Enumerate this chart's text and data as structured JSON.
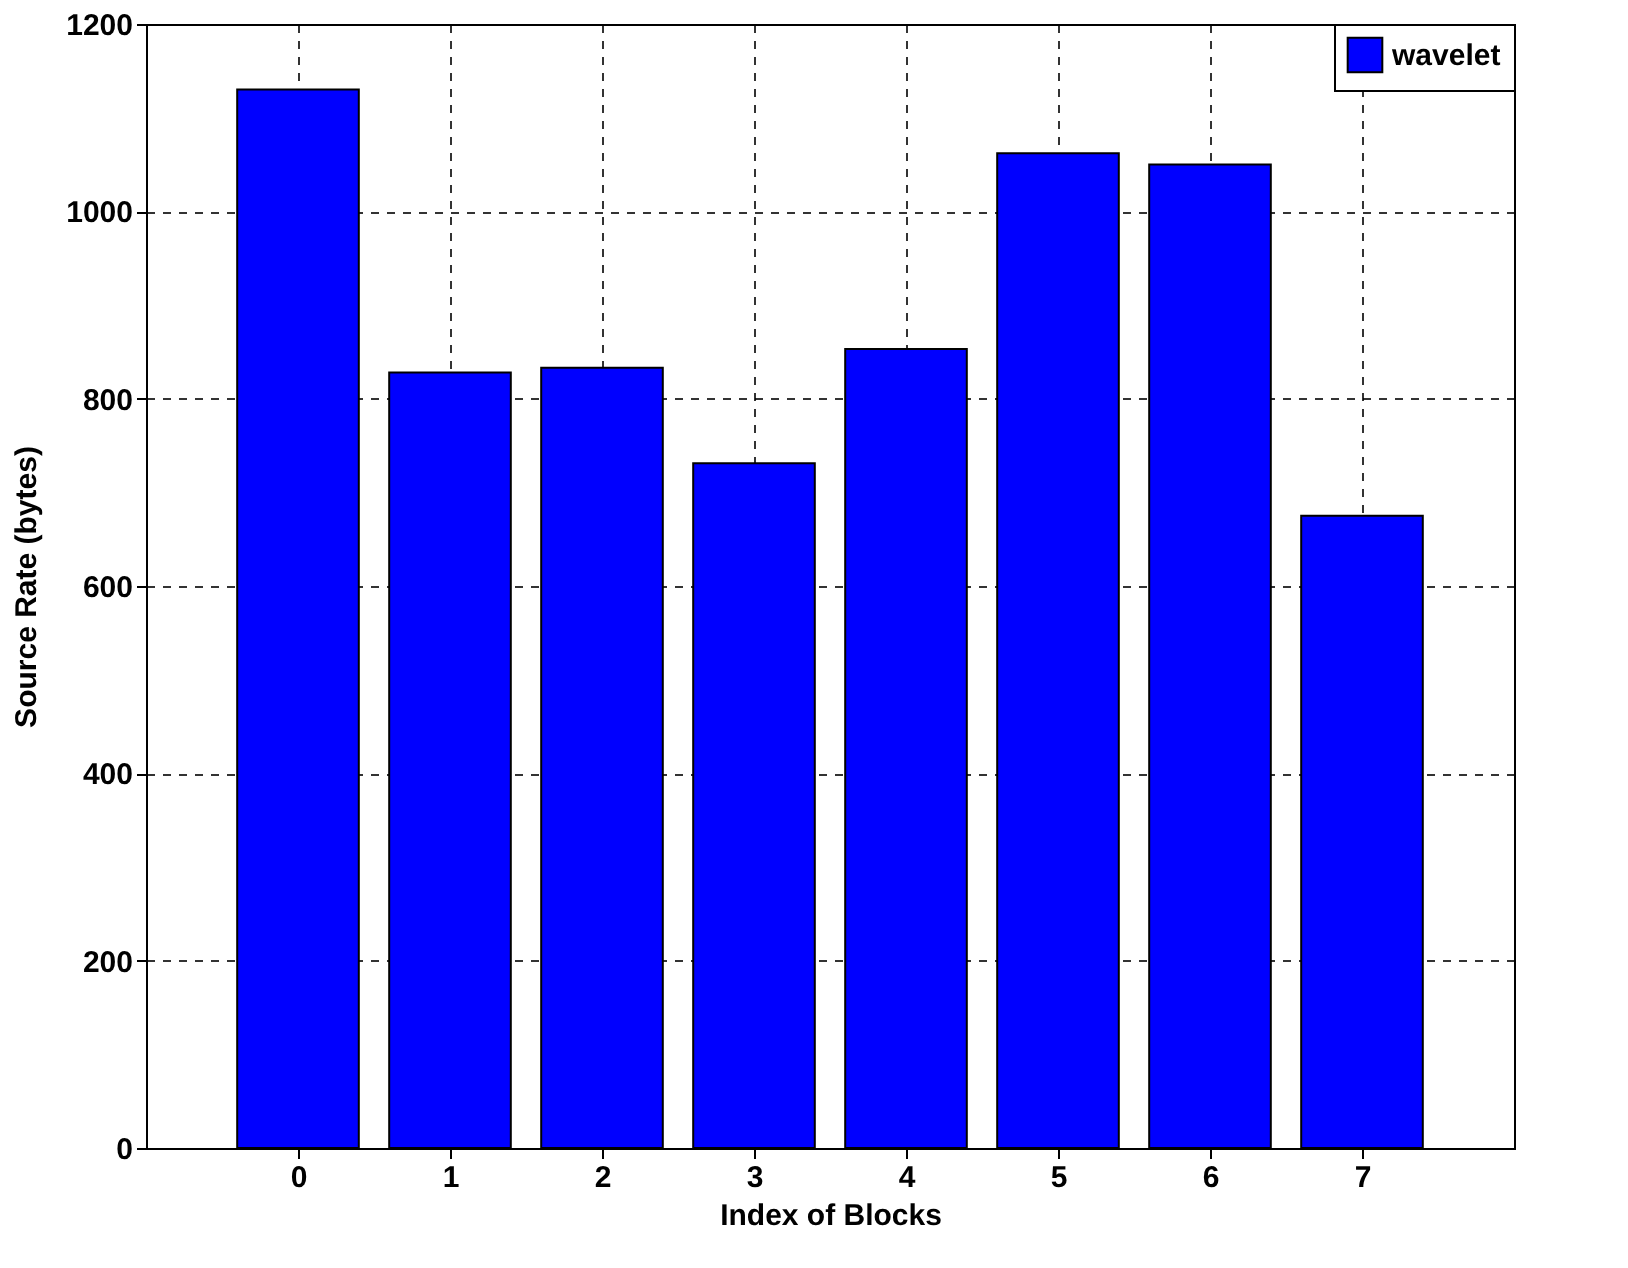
{
  "chart_data": {
    "type": "bar",
    "xlabel": "Index of Blocks",
    "ylabel": "Source Rate (bytes)",
    "x": [
      0,
      1,
      2,
      3,
      4,
      5,
      6,
      7
    ],
    "series": [
      {
        "name": "wavelet",
        "color": "#0000ff",
        "values": [
          1130,
          828,
          833,
          731,
          853,
          1062,
          1050,
          675
        ]
      }
    ],
    "xlim": [
      -1,
      8
    ],
    "xticks": [
      0,
      1,
      2,
      3,
      4,
      5,
      6,
      7
    ],
    "ylim": [
      0,
      1200
    ],
    "yticks": [
      0,
      200,
      400,
      600,
      800,
      1000,
      1200
    ],
    "grid": true,
    "legend": "top right"
  }
}
